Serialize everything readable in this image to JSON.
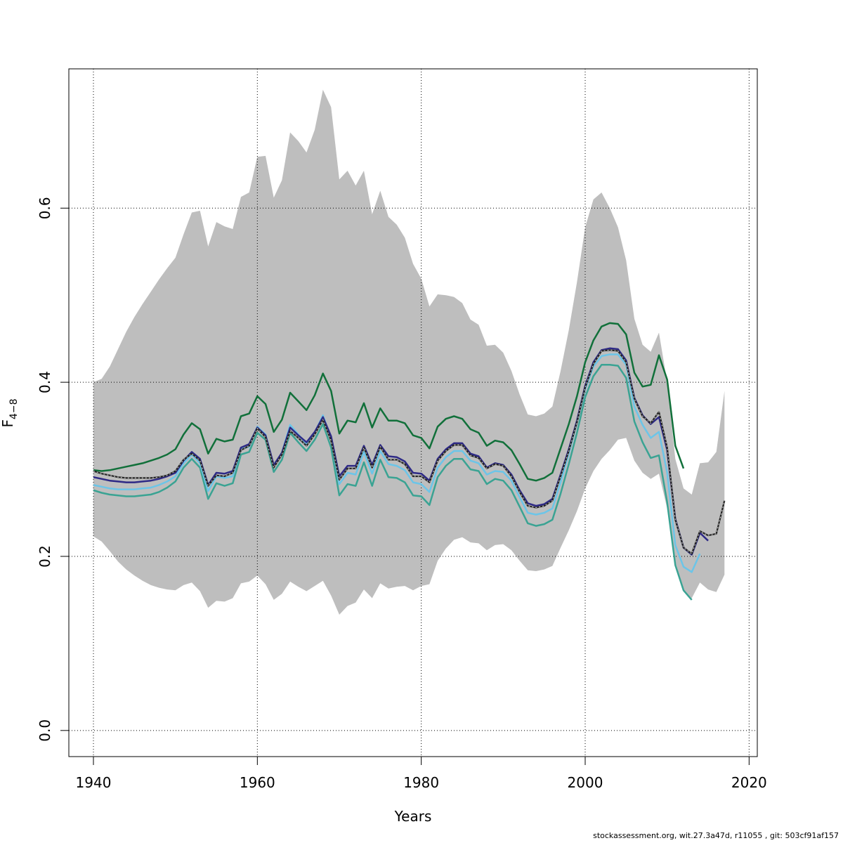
{
  "chart_data": {
    "type": "line",
    "title": "",
    "xlabel": "Years",
    "ylabel_main": "F",
    "ylabel_sub": "4−8",
    "xlim": [
      1937,
      2021
    ],
    "ylim": [
      -0.03,
      0.76
    ],
    "x_ticks": [
      "1940",
      "1960",
      "1980",
      "2000",
      "2020"
    ],
    "x_tick_values": [
      1940,
      1960,
      1980,
      2000,
      2020
    ],
    "y_ticks": [
      "0.0",
      "0.2",
      "0.4",
      "0.6"
    ],
    "y_tick_values": [
      0.0,
      0.2,
      0.4,
      0.6
    ],
    "grid": true,
    "colors": {
      "band": "#bebebe",
      "green": "#11703a",
      "navy": "#2e2a86",
      "lightblue": "#6cc5e8",
      "teal": "#3aa393",
      "black": "#222222"
    },
    "band": {
      "x": [
        1940,
        1941,
        1942,
        1943,
        1944,
        1945,
        1946,
        1947,
        1948,
        1949,
        1950,
        1951,
        1952,
        1953,
        1954,
        1955,
        1956,
        1957,
        1958,
        1959,
        1960,
        1961,
        1962,
        1963,
        1964,
        1965,
        1966,
        1967,
        1968,
        1969,
        1970,
        1971,
        1972,
        1973,
        1974,
        1975,
        1976,
        1977,
        1978,
        1979,
        1980,
        1981,
        1982,
        1983,
        1984,
        1985,
        1986,
        1987,
        1988,
        1989,
        1990,
        1991,
        1992,
        1993,
        1994,
        1995,
        1996,
        1997,
        1998,
        1999,
        2000,
        2001,
        2002,
        2003,
        2004,
        2005,
        2006,
        2007,
        2008,
        2009,
        2010,
        2011,
        2012,
        2013,
        2014,
        2015,
        2016,
        2017
      ],
      "upper": [
        0.4,
        0.404,
        0.418,
        0.438,
        0.458,
        0.475,
        0.49,
        0.504,
        0.518,
        0.531,
        0.543,
        0.57,
        0.595,
        0.597,
        0.556,
        0.584,
        0.579,
        0.576,
        0.613,
        0.618,
        0.659,
        0.66,
        0.612,
        0.632,
        0.687,
        0.677,
        0.664,
        0.69,
        0.736,
        0.716,
        0.633,
        0.643,
        0.626,
        0.643,
        0.593,
        0.62,
        0.59,
        0.581,
        0.566,
        0.536,
        0.519,
        0.487,
        0.501,
        0.5,
        0.498,
        0.491,
        0.472,
        0.466,
        0.442,
        0.443,
        0.434,
        0.413,
        0.386,
        0.363,
        0.361,
        0.364,
        0.372,
        0.413,
        0.46,
        0.515,
        0.578,
        0.61,
        0.618,
        0.6,
        0.578,
        0.54,
        0.473,
        0.443,
        0.435,
        0.457,
        0.4,
        0.312,
        0.278,
        0.271,
        0.307,
        0.308,
        0.32,
        0.39
      ],
      "lower": [
        0.223,
        0.217,
        0.206,
        0.194,
        0.185,
        0.178,
        0.172,
        0.167,
        0.164,
        0.162,
        0.161,
        0.167,
        0.17,
        0.16,
        0.141,
        0.149,
        0.148,
        0.152,
        0.169,
        0.171,
        0.178,
        0.168,
        0.15,
        0.157,
        0.171,
        0.165,
        0.16,
        0.166,
        0.172,
        0.155,
        0.133,
        0.143,
        0.147,
        0.162,
        0.152,
        0.169,
        0.163,
        0.165,
        0.166,
        0.161,
        0.166,
        0.168,
        0.195,
        0.209,
        0.219,
        0.222,
        0.216,
        0.215,
        0.207,
        0.213,
        0.214,
        0.207,
        0.195,
        0.184,
        0.183,
        0.185,
        0.189,
        0.21,
        0.23,
        0.252,
        0.278,
        0.298,
        0.312,
        0.322,
        0.334,
        0.336,
        0.31,
        0.296,
        0.289,
        0.295,
        0.255,
        0.194,
        0.16,
        0.152,
        0.17,
        0.162,
        0.159,
        0.179
      ]
    },
    "series": [
      {
        "key": "green",
        "x": [
          1940,
          1941,
          1942,
          1943,
          1944,
          1945,
          1946,
          1947,
          1948,
          1949,
          1950,
          1951,
          1952,
          1953,
          1954,
          1955,
          1956,
          1957,
          1958,
          1959,
          1960,
          1961,
          1962,
          1963,
          1964,
          1965,
          1966,
          1967,
          1968,
          1969,
          1970,
          1971,
          1972,
          1973,
          1974,
          1975,
          1976,
          1977,
          1978,
          1979,
          1980,
          1981,
          1982,
          1983,
          1984,
          1985,
          1986,
          1987,
          1988,
          1989,
          1990,
          1991,
          1992,
          1993,
          1994,
          1995,
          1996,
          1997,
          1998,
          1999,
          2000,
          2001,
          2002,
          2003,
          2004,
          2005,
          2006,
          2007,
          2008,
          2009,
          2010,
          2011,
          2012
        ],
        "y": [
          0.299,
          0.298,
          0.299,
          0.301,
          0.303,
          0.305,
          0.307,
          0.31,
          0.313,
          0.317,
          0.323,
          0.34,
          0.353,
          0.346,
          0.318,
          0.335,
          0.332,
          0.334,
          0.361,
          0.364,
          0.384,
          0.375,
          0.343,
          0.357,
          0.388,
          0.378,
          0.368,
          0.385,
          0.41,
          0.39,
          0.341,
          0.356,
          0.354,
          0.376,
          0.348,
          0.37,
          0.356,
          0.356,
          0.353,
          0.339,
          0.336,
          0.324,
          0.349,
          0.358,
          0.361,
          0.358,
          0.346,
          0.342,
          0.327,
          0.333,
          0.331,
          0.322,
          0.306,
          0.289,
          0.287,
          0.29,
          0.296,
          0.324,
          0.352,
          0.384,
          0.423,
          0.448,
          0.464,
          0.468,
          0.467,
          0.455,
          0.411,
          0.395,
          0.397,
          0.431,
          0.403,
          0.327,
          0.301
        ]
      },
      {
        "key": "teal",
        "x": [
          1940,
          1941,
          1942,
          1943,
          1944,
          1945,
          1946,
          1947,
          1948,
          1949,
          1950,
          1951,
          1952,
          1953,
          1954,
          1955,
          1956,
          1957,
          1958,
          1959,
          1960,
          1961,
          1962,
          1963,
          1964,
          1965,
          1966,
          1967,
          1968,
          1969,
          1970,
          1971,
          1972,
          1973,
          1974,
          1975,
          1976,
          1977,
          1978,
          1979,
          1980,
          1981,
          1982,
          1983,
          1984,
          1985,
          1986,
          1987,
          1988,
          1989,
          1990,
          1991,
          1992,
          1993,
          1994,
          1995,
          1996,
          1997,
          1998,
          1999,
          2000,
          2001,
          2002,
          2003,
          2004,
          2005,
          2006,
          2007,
          2008,
          2009,
          2010,
          2011,
          2012,
          2013
        ],
        "y": [
          0.276,
          0.273,
          0.271,
          0.27,
          0.269,
          0.269,
          0.27,
          0.271,
          0.274,
          0.279,
          0.286,
          0.302,
          0.312,
          0.302,
          0.266,
          0.284,
          0.281,
          0.284,
          0.317,
          0.32,
          0.342,
          0.334,
          0.297,
          0.311,
          0.342,
          0.331,
          0.321,
          0.334,
          0.352,
          0.325,
          0.27,
          0.283,
          0.281,
          0.308,
          0.281,
          0.311,
          0.291,
          0.29,
          0.285,
          0.27,
          0.269,
          0.259,
          0.291,
          0.304,
          0.312,
          0.312,
          0.3,
          0.298,
          0.283,
          0.289,
          0.287,
          0.276,
          0.257,
          0.238,
          0.235,
          0.237,
          0.242,
          0.272,
          0.306,
          0.342,
          0.383,
          0.407,
          0.42,
          0.42,
          0.419,
          0.405,
          0.355,
          0.331,
          0.313,
          0.316,
          0.262,
          0.19,
          0.161,
          0.15
        ]
      },
      {
        "key": "lightblue",
        "x": [
          1940,
          1941,
          1942,
          1943,
          1944,
          1945,
          1946,
          1947,
          1948,
          1949,
          1950,
          1951,
          1952,
          1953,
          1954,
          1955,
          1956,
          1957,
          1958,
          1959,
          1960,
          1961,
          1962,
          1963,
          1964,
          1965,
          1966,
          1967,
          1968,
          1969,
          1970,
          1971,
          1972,
          1973,
          1974,
          1975,
          1976,
          1977,
          1978,
          1979,
          1980,
          1981,
          1982,
          1983,
          1984,
          1985,
          1986,
          1987,
          1988,
          1989,
          1990,
          1991,
          1992,
          1993,
          1994,
          1995,
          1996,
          1997,
          1998,
          1999,
          2000,
          2001,
          2002,
          2003,
          2004,
          2005,
          2006,
          2007,
          2008,
          2009,
          2010,
          2011,
          2012,
          2013,
          2014
        ],
        "y": [
          0.282,
          0.28,
          0.278,
          0.277,
          0.277,
          0.277,
          0.278,
          0.279,
          0.282,
          0.286,
          0.292,
          0.307,
          0.317,
          0.307,
          0.275,
          0.292,
          0.29,
          0.292,
          0.323,
          0.326,
          0.349,
          0.34,
          0.304,
          0.319,
          0.351,
          0.34,
          0.329,
          0.342,
          0.362,
          0.335,
          0.283,
          0.296,
          0.294,
          0.32,
          0.295,
          0.321,
          0.306,
          0.304,
          0.299,
          0.285,
          0.283,
          0.274,
          0.302,
          0.314,
          0.321,
          0.321,
          0.31,
          0.307,
          0.294,
          0.298,
          0.297,
          0.287,
          0.268,
          0.25,
          0.248,
          0.25,
          0.255,
          0.285,
          0.318,
          0.354,
          0.392,
          0.418,
          0.43,
          0.432,
          0.432,
          0.42,
          0.372,
          0.351,
          0.336,
          0.343,
          0.296,
          0.213,
          0.188,
          0.182,
          0.203
        ]
      },
      {
        "key": "navy",
        "x": [
          1940,
          1941,
          1942,
          1943,
          1944,
          1945,
          1946,
          1947,
          1948,
          1949,
          1950,
          1951,
          1952,
          1953,
          1954,
          1955,
          1956,
          1957,
          1958,
          1959,
          1960,
          1961,
          1962,
          1963,
          1964,
          1965,
          1966,
          1967,
          1968,
          1969,
          1970,
          1971,
          1972,
          1973,
          1974,
          1975,
          1976,
          1977,
          1978,
          1979,
          1980,
          1981,
          1982,
          1983,
          1984,
          1985,
          1986,
          1987,
          1988,
          1989,
          1990,
          1991,
          1992,
          1993,
          1994,
          1995,
          1996,
          1997,
          1998,
          1999,
          2000,
          2001,
          2002,
          2003,
          2004,
          2005,
          2006,
          2007,
          2008,
          2009,
          2010,
          2011,
          2012,
          2013,
          2014,
          2015
        ],
        "y": [
          0.291,
          0.289,
          0.287,
          0.286,
          0.285,
          0.285,
          0.286,
          0.287,
          0.289,
          0.292,
          0.296,
          0.31,
          0.32,
          0.312,
          0.282,
          0.296,
          0.295,
          0.298,
          0.325,
          0.329,
          0.348,
          0.339,
          0.305,
          0.319,
          0.348,
          0.339,
          0.331,
          0.343,
          0.36,
          0.338,
          0.292,
          0.304,
          0.304,
          0.327,
          0.305,
          0.328,
          0.315,
          0.314,
          0.309,
          0.296,
          0.295,
          0.287,
          0.312,
          0.323,
          0.33,
          0.33,
          0.318,
          0.315,
          0.302,
          0.307,
          0.305,
          0.294,
          0.276,
          0.261,
          0.258,
          0.26,
          0.266,
          0.294,
          0.323,
          0.356,
          0.396,
          0.423,
          0.437,
          0.439,
          0.438,
          0.425,
          0.382,
          0.362,
          0.352,
          0.36,
          0.322,
          0.243,
          0.21,
          0.202,
          0.227,
          0.218
        ]
      },
      {
        "key": "black",
        "dashed": true,
        "x": [
          1940,
          1941,
          1942,
          1943,
          1944,
          1945,
          1946,
          1947,
          1948,
          1949,
          1950,
          1951,
          1952,
          1953,
          1954,
          1955,
          1956,
          1957,
          1958,
          1959,
          1960,
          1961,
          1962,
          1963,
          1964,
          1965,
          1966,
          1967,
          1968,
          1969,
          1970,
          1971,
          1972,
          1973,
          1974,
          1975,
          1976,
          1977,
          1978,
          1979,
          1980,
          1981,
          1982,
          1983,
          1984,
          1985,
          1986,
          1987,
          1988,
          1989,
          1990,
          1991,
          1992,
          1993,
          1994,
          1995,
          1996,
          1997,
          1998,
          1999,
          2000,
          2001,
          2002,
          2003,
          2004,
          2005,
          2006,
          2007,
          2008,
          2009,
          2010,
          2011,
          2012,
          2013,
          2014,
          2015,
          2016,
          2017
        ],
        "y": [
          0.298,
          0.295,
          0.293,
          0.291,
          0.29,
          0.29,
          0.29,
          0.29,
          0.291,
          0.293,
          0.298,
          0.311,
          0.318,
          0.31,
          0.281,
          0.293,
          0.292,
          0.296,
          0.322,
          0.327,
          0.347,
          0.337,
          0.302,
          0.317,
          0.344,
          0.336,
          0.327,
          0.34,
          0.357,
          0.333,
          0.288,
          0.301,
          0.301,
          0.325,
          0.302,
          0.326,
          0.311,
          0.311,
          0.306,
          0.292,
          0.292,
          0.285,
          0.31,
          0.321,
          0.328,
          0.328,
          0.316,
          0.313,
          0.301,
          0.306,
          0.304,
          0.292,
          0.274,
          0.258,
          0.256,
          0.258,
          0.264,
          0.292,
          0.321,
          0.354,
          0.394,
          0.421,
          0.436,
          0.437,
          0.436,
          0.423,
          0.381,
          0.361,
          0.353,
          0.366,
          0.325,
          0.242,
          0.21,
          0.203,
          0.229,
          0.224,
          0.226,
          0.264
        ]
      }
    ]
  },
  "footer": {
    "text": "stockassessment.org, wit.27.3a47d, r11055 , git: 503cf91af157"
  }
}
